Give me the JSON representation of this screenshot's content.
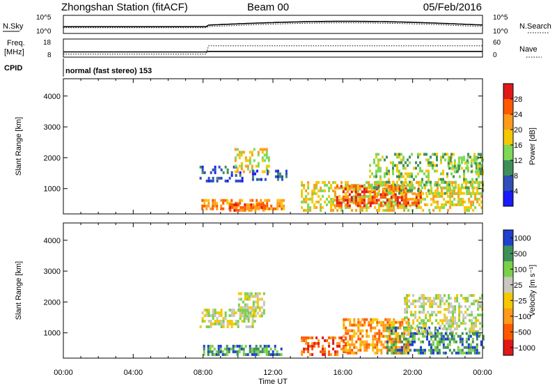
{
  "header": {
    "title": "Zhongshan Station (fitACF)",
    "beam": "Beam 00",
    "date": "05/Feb/2016"
  },
  "info_panels": {
    "nsky_label": "N.Sky",
    "nsearch_label": "N.Search",
    "freq_label": "Freq.",
    "freq_unit": "[MHz]",
    "cpid_label": "CPID",
    "nave_label": "Nave",
    "nsky_ticks": [
      "10^5",
      "10^0"
    ],
    "nsearch_ticks": [
      "10^5",
      "10^0"
    ],
    "freq_ticks": [
      "18",
      "8"
    ],
    "nave_ticks": [
      "60",
      "0"
    ],
    "cpid_text": "normal (fast stereo) 153"
  },
  "colorbars": {
    "power": {
      "label": "Power [dB]",
      "ticks": [
        "28",
        "24",
        "20",
        "16",
        "12",
        "8",
        "4"
      ],
      "colors": [
        "#e01818",
        "#ff5a00",
        "#ff9a1a",
        "#f4c800",
        "#7ed957",
        "#3f8f5a",
        "#2f4fb8",
        "#1a1aff"
      ]
    },
    "velocity": {
      "label": "Velocity [m s⁻¹]",
      "ticks": [
        "1000",
        "500",
        "100",
        "25",
        "−25",
        "−100",
        "−500",
        "−1000"
      ],
      "colors": [
        "#2040d0",
        "#3f8f5a",
        "#7bd04a",
        "#c8c8c0",
        "#f4c800",
        "#ff9a1a",
        "#ff5a00",
        "#e01818"
      ]
    }
  },
  "chart_data": [
    {
      "type": "heatmap",
      "panel": "power",
      "ylabel": "Slant Range [km]",
      "ylim": [
        180,
        4560
      ],
      "yticks": [
        1000,
        2000,
        3000,
        4000
      ],
      "xlim": [
        0,
        24
      ],
      "regions": [
        {
          "t0": 7.8,
          "t1": 10.2,
          "r0": 1200,
          "r1": 1700,
          "level": 1,
          "density": 0.35
        },
        {
          "t0": 9.8,
          "t1": 11.8,
          "r0": 1500,
          "r1": 2300,
          "level": 4,
          "density": 0.45
        },
        {
          "t0": 10.8,
          "t1": 12.8,
          "r0": 1250,
          "r1": 1600,
          "level": 1,
          "density": 0.35
        },
        {
          "t0": 7.9,
          "t1": 12.6,
          "r0": 300,
          "r1": 650,
          "level": 5,
          "density": 0.55
        },
        {
          "t0": 9.5,
          "t1": 11.5,
          "r0": 250,
          "r1": 500,
          "level": 6,
          "density": 0.75
        },
        {
          "t0": 13.6,
          "t1": 24,
          "r0": 250,
          "r1": 1200,
          "level": 4,
          "density": 0.5
        },
        {
          "t0": 15.5,
          "t1": 20.5,
          "r0": 400,
          "r1": 1100,
          "level": 6,
          "density": 0.55
        },
        {
          "t0": 17.5,
          "t1": 24,
          "r0": 800,
          "r1": 2100,
          "level": 3,
          "density": 0.35
        },
        {
          "t0": 22,
          "t1": 24,
          "r0": 1500,
          "r1": 2000,
          "level": 3,
          "density": 0.45
        }
      ]
    },
    {
      "type": "heatmap",
      "panel": "velocity",
      "ylabel": "Slant Range [km]",
      "ylim": [
        180,
        4560
      ],
      "yticks": [
        1000,
        2000,
        3000,
        4000
      ],
      "xlim": [
        0,
        24
      ],
      "xticks": [
        "00:00",
        "04:00",
        "08:00",
        "12:00",
        "16:00",
        "20:00",
        "00:00"
      ],
      "xlabel": "Time UT",
      "regions": [
        {
          "t0": 7.8,
          "t1": 11.0,
          "r0": 1150,
          "r1": 1700,
          "level": 3,
          "density": 0.55
        },
        {
          "t0": 10.0,
          "t1": 11.5,
          "r0": 1500,
          "r1": 2300,
          "level": 3,
          "density": 0.6
        },
        {
          "t0": 8.0,
          "t1": 12.5,
          "r0": 250,
          "r1": 600,
          "level": 1,
          "density": 0.65
        },
        {
          "t0": 13.6,
          "t1": 16.2,
          "r0": 250,
          "r1": 800,
          "level": 6,
          "density": 0.5
        },
        {
          "t0": 16.0,
          "t1": 19.8,
          "r0": 300,
          "r1": 1400,
          "level": 5,
          "density": 0.6
        },
        {
          "t0": 18.5,
          "t1": 21.5,
          "r0": 300,
          "r1": 1200,
          "level": 1,
          "density": 0.5
        },
        {
          "t0": 19.5,
          "t1": 24,
          "r0": 900,
          "r1": 2200,
          "level": 3,
          "density": 0.45
        },
        {
          "t0": 21,
          "t1": 24,
          "r0": 300,
          "r1": 1000,
          "level": 1,
          "density": 0.5
        }
      ]
    }
  ]
}
